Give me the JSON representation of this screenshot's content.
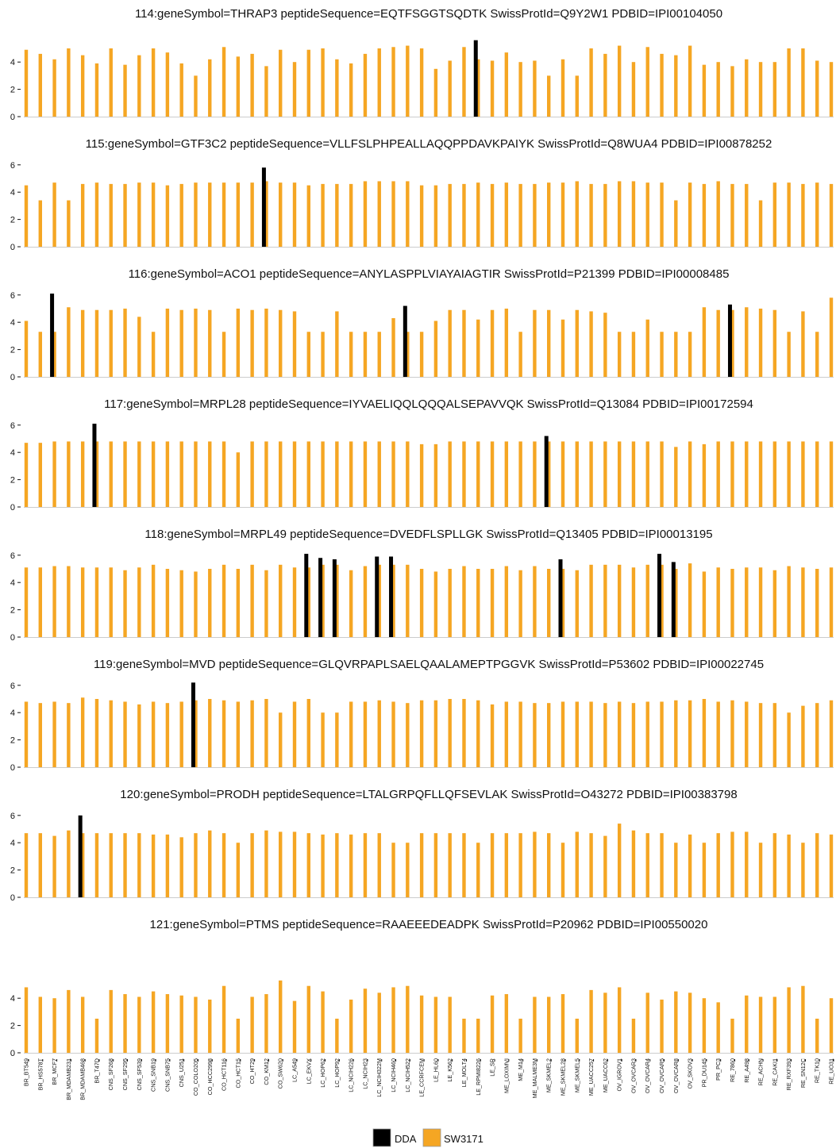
{
  "chart_data": {
    "type": "bar",
    "colors": {
      "dda": "#000000",
      "sw": "#F5A623",
      "baseline": "#cccccc"
    },
    "legend": {
      "placement": "bottom-center",
      "entries": [
        "DDA",
        "SW3171"
      ]
    },
    "categories": [
      "BR_BT549",
      "BR_HS578T",
      "BR_MCF7",
      "BR_MDAMB231",
      "BR_MDAMB468",
      "BR_T47D",
      "CNS_SF268",
      "CNS_SF295",
      "CNS_SF539",
      "CNS_SNB19",
      "CNS_SNB75",
      "CNS_U251",
      "CO_COLO205",
      "CO_HCC2998",
      "CO_HCT116",
      "CO_HCT15",
      "CO_HT29",
      "CO_KM12",
      "CO_SW620",
      "LC_A549",
      "LC_EKVX",
      "LC_HOP62",
      "LC_HOP92",
      "LC_NCIH226",
      "LC_NCIH23",
      "LC_NCIH322M",
      "LC_NCIH460",
      "LC_NCIH522",
      "LE_CCRFCEM",
      "LE_HL60",
      "LE_K562",
      "LE_MOLT4",
      "LE_RPMI8226",
      "LE_SR",
      "ME_LOXIMVI",
      "ME_M14",
      "ME_MALME3M",
      "ME_SKMEL2",
      "ME_SKMEL28",
      "ME_SKMEL5",
      "ME_UACC257",
      "ME_UACC62",
      "OV_IGROV1",
      "OV_OVCAR3",
      "OV_OVCAR4",
      "OV_OVCAR5",
      "OV_OVCAR8",
      "OV_SKOV3",
      "PR_DU145",
      "PR_PC3",
      "RE_7860",
      "RE_A498",
      "RE_ACHN",
      "RE_CAKI1",
      "RE_RXF393",
      "RE_SN12C",
      "RE_TK10",
      "RE_UO31"
    ],
    "panels": [
      {
        "title": "114:geneSymbol=THRAP3  peptideSequence=EQTFSGGTSQDTK  SwissProtId=Q9Y2W1 PDBID=IPI00104050",
        "yticks": [
          0,
          2,
          4
        ],
        "ylim": [
          0,
          5.6
        ],
        "sw": [
          4.9,
          4.6,
          4.2,
          5.0,
          4.5,
          3.9,
          5.0,
          3.8,
          4.5,
          5.0,
          4.7,
          3.9,
          3.0,
          4.2,
          5.1,
          4.4,
          4.6,
          3.7,
          4.9,
          4.0,
          4.9,
          5.0,
          4.2,
          3.9,
          4.6,
          5.0,
          5.1,
          5.2,
          5.0,
          3.5,
          4.1,
          5.1,
          4.2,
          4.1,
          4.7,
          4.0,
          4.1,
          3.0,
          4.2,
          3.0,
          5.0,
          4.6,
          5.2,
          4.0,
          5.1,
          4.6,
          4.5,
          5.2,
          3.8,
          4.0,
          3.7,
          4.2,
          4.0,
          4.0,
          5.0,
          5.0,
          4.1,
          4.0
        ],
        "dda": {
          "32": 5.6
        }
      },
      {
        "title": "115:geneSymbol=GTF3C2  peptideSequence=VLLFSLPHPEALLAQQPPDAVKPAIYK  SwissProtId=Q8WUA4 PDBID=IPI00878252",
        "yticks": [
          0,
          2,
          4,
          6
        ],
        "ylim": [
          0,
          6.3
        ],
        "sw": [
          4.5,
          3.4,
          4.7,
          3.4,
          4.6,
          4.7,
          4.6,
          4.6,
          4.7,
          4.7,
          4.5,
          4.6,
          4.7,
          4.7,
          4.7,
          4.7,
          4.7,
          4.8,
          4.7,
          4.7,
          4.5,
          4.6,
          4.6,
          4.6,
          4.8,
          4.8,
          4.8,
          4.8,
          4.5,
          4.5,
          4.6,
          4.6,
          4.7,
          4.6,
          4.7,
          4.6,
          4.6,
          4.7,
          4.7,
          4.8,
          4.6,
          4.6,
          4.8,
          4.8,
          4.7,
          4.7,
          3.4,
          4.7,
          4.6,
          4.8,
          4.6,
          4.6,
          3.4,
          4.7,
          4.7,
          4.6,
          4.7,
          4.6
        ],
        "dda": {
          "17": 5.8
        }
      },
      {
        "title": "116:geneSymbol=ACO1  peptideSequence=ANYLASPPLVIAYAIAGTIR  SwissProtId=P21399 PDBID=IPI00008485",
        "yticks": [
          0,
          2,
          4,
          6
        ],
        "ylim": [
          0,
          6.3
        ],
        "sw": [
          4.1,
          3.3,
          3.3,
          5.1,
          4.9,
          4.9,
          4.9,
          5.0,
          4.4,
          3.3,
          5.0,
          4.9,
          5.0,
          4.9,
          3.3,
          5.0,
          4.9,
          5.0,
          4.9,
          4.8,
          3.3,
          3.3,
          4.8,
          3.3,
          3.3,
          3.3,
          4.3,
          3.3,
          3.3,
          4.1,
          4.9,
          4.9,
          4.2,
          4.9,
          5.0,
          3.3,
          4.9,
          4.9,
          4.2,
          4.9,
          4.8,
          4.7,
          3.3,
          3.3,
          4.2,
          3.3,
          3.3,
          3.3,
          5.1,
          4.9,
          4.9,
          5.1,
          5.0,
          4.9,
          3.3,
          4.8,
          3.3,
          5.8
        ],
        "dda": {
          "2": 6.1,
          "27": 5.2,
          "50": 5.3
        }
      },
      {
        "title": "117:geneSymbol=MRPL28  peptideSequence=IYVAELIQQLQQQALSEPAVVQK  SwissProtId=Q13084 PDBID=IPI00172594",
        "yticks": [
          0,
          2,
          4,
          6
        ],
        "ylim": [
          0,
          6.3
        ],
        "sw": [
          4.7,
          4.7,
          4.8,
          4.8,
          4.8,
          4.8,
          4.8,
          4.8,
          4.8,
          4.8,
          4.8,
          4.8,
          4.8,
          4.8,
          4.8,
          4.0,
          4.8,
          4.8,
          4.8,
          4.8,
          4.8,
          4.8,
          4.8,
          4.8,
          4.8,
          4.8,
          4.8,
          4.8,
          4.6,
          4.6,
          4.8,
          4.8,
          4.8,
          4.8,
          4.8,
          4.8,
          4.8,
          4.8,
          4.8,
          4.8,
          4.8,
          4.8,
          4.8,
          4.8,
          4.8,
          4.8,
          4.4,
          4.8,
          4.6,
          4.8,
          4.8,
          4.8,
          4.8,
          4.8,
          4.8,
          4.8,
          4.8,
          4.8
        ],
        "dda": {
          "5": 6.1,
          "37": 5.2
        }
      },
      {
        "title": "118:geneSymbol=MRPL49  peptideSequence=DVEDFLSPLLGK  SwissProtId=Q13405 PDBID=IPI00013195",
        "yticks": [
          0,
          2,
          4,
          6
        ],
        "ylim": [
          0,
          6.3
        ],
        "sw": [
          5.1,
          5.1,
          5.2,
          5.2,
          5.1,
          5.1,
          5.1,
          4.9,
          5.1,
          5.3,
          5.0,
          4.9,
          4.8,
          5.0,
          5.3,
          5.0,
          5.3,
          4.9,
          5.3,
          5.1,
          5.1,
          5.3,
          5.3,
          4.9,
          5.2,
          5.3,
          5.3,
          5.3,
          5.0,
          4.8,
          5.0,
          5.2,
          5.0,
          5.0,
          5.2,
          4.9,
          5.2,
          5.0,
          5.0,
          4.9,
          5.3,
          5.3,
          5.3,
          5.1,
          5.3,
          5.3,
          5.0,
          5.4,
          4.8,
          5.1,
          5.0,
          5.1,
          5.1,
          4.9,
          5.2,
          5.1,
          5.0,
          5.1
        ],
        "dda": {
          "20": 6.1,
          "21": 5.8,
          "22": 5.7,
          "25": 5.9,
          "26": 5.9,
          "38": 5.7,
          "45": 6.1,
          "46": 5.5
        }
      },
      {
        "title": "119:geneSymbol=MVD  peptideSequence=GLQVRPAPLSAELQAALAMEPTPGGVK  SwissProtId=P53602 PDBID=IPI00022745",
        "yticks": [
          0,
          2,
          4,
          6
        ],
        "ylim": [
          0,
          6.3
        ],
        "sw": [
          4.8,
          4.7,
          4.8,
          4.7,
          5.1,
          5.0,
          4.9,
          4.8,
          4.6,
          4.8,
          4.7,
          4.8,
          4.9,
          5.0,
          4.9,
          4.8,
          4.9,
          5.0,
          4.0,
          4.8,
          5.0,
          4.0,
          4.0,
          4.8,
          4.8,
          4.9,
          4.8,
          4.7,
          4.9,
          4.9,
          5.0,
          5.0,
          4.9,
          4.6,
          4.8,
          4.8,
          4.7,
          4.7,
          4.8,
          4.8,
          4.8,
          4.7,
          4.8,
          4.7,
          4.8,
          4.8,
          4.9,
          4.9,
          5.0,
          4.8,
          4.9,
          4.8,
          4.7,
          4.7,
          4.0,
          4.5,
          4.7,
          4.9
        ],
        "dda": {
          "12": 6.2
        }
      },
      {
        "title": "120:geneSymbol=PRODH  peptideSequence=LTALGRPQFLLQFSEVLAK  SwissProtId=O43272 PDBID=IPI00383798",
        "yticks": [
          0,
          2,
          4,
          6
        ],
        "ylim": [
          0,
          6.3
        ],
        "sw": [
          4.7,
          4.7,
          4.5,
          4.9,
          4.7,
          4.7,
          4.7,
          4.7,
          4.7,
          4.6,
          4.6,
          4.4,
          4.7,
          4.9,
          4.7,
          4.0,
          4.7,
          4.9,
          4.8,
          4.8,
          4.7,
          4.6,
          4.7,
          4.6,
          4.7,
          4.7,
          4.0,
          4.0,
          4.7,
          4.7,
          4.7,
          4.7,
          4.0,
          4.7,
          4.7,
          4.7,
          4.8,
          4.7,
          4.0,
          4.8,
          4.7,
          4.5,
          5.4,
          4.9,
          4.7,
          4.7,
          4.0,
          4.6,
          4.0,
          4.7,
          4.8,
          4.8,
          4.0,
          4.7,
          4.6,
          4.0,
          4.7,
          4.6
        ],
        "dda": {
          "4": 6.0
        }
      },
      {
        "title": "121:geneSymbol=PTMS  peptideSequence=RAAEEEDEADPK  SwissProtId=P20962 PDBID=IPI00550020",
        "yticks": [
          0,
          2,
          4
        ],
        "ylim": [
          0,
          5.6
        ],
        "sw": [
          4.8,
          4.1,
          4.0,
          4.6,
          4.1,
          2.5,
          4.6,
          4.3,
          4.1,
          4.5,
          4.3,
          4.2,
          4.1,
          3.9,
          4.9,
          2.5,
          4.1,
          4.3,
          5.3,
          3.8,
          4.9,
          4.5,
          2.5,
          3.9,
          4.7,
          4.4,
          4.8,
          4.9,
          4.2,
          4.1,
          4.1,
          2.5,
          2.5,
          4.2,
          4.3,
          2.5,
          4.1,
          4.1,
          4.3,
          2.5,
          4.6,
          4.4,
          4.8,
          2.5,
          4.4,
          3.9,
          4.5,
          4.4,
          4.0,
          3.7,
          2.5,
          4.2,
          4.1,
          4.1,
          4.8,
          4.9,
          2.5,
          4.0
        ],
        "dda": {}
      }
    ]
  }
}
